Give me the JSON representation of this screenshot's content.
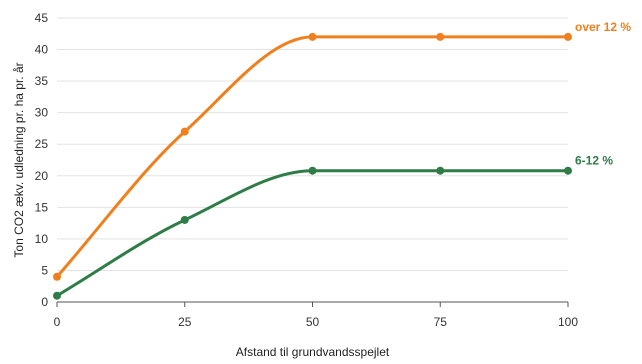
{
  "chart_data": {
    "type": "line",
    "xlabel": "Afstand til grundvandsspejlet",
    "ylabel": "Ton CO2 ækv. udledning pr. ha pr. år",
    "xlim": [
      0,
      100
    ],
    "ylim": [
      0,
      45
    ],
    "x_ticks": [
      0,
      25,
      50,
      75,
      100
    ],
    "y_ticks": [
      0,
      5,
      10,
      15,
      20,
      25,
      30,
      35,
      40,
      45
    ],
    "grid": true,
    "series": [
      {
        "name": "over 12 %",
        "color": "#f07f1e",
        "x": [
          0,
          25,
          50,
          75,
          100
        ],
        "y": [
          4,
          27,
          42,
          42,
          42
        ]
      },
      {
        "name": "6-12 %",
        "color": "#2e7d46",
        "x": [
          0,
          25,
          50,
          75,
          100
        ],
        "y": [
          1,
          13,
          20.8,
          20.8,
          20.8
        ]
      }
    ]
  }
}
